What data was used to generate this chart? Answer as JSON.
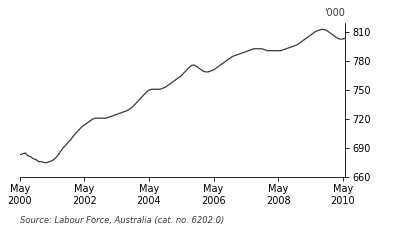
{
  "source_text": "Source: Labour Force, Australia (cat. no. 6202.0)",
  "ylim": [
    660,
    820
  ],
  "yticks": [
    660,
    690,
    720,
    750,
    780,
    810
  ],
  "x_tick_labels": [
    "May\n2000",
    "May\n2002",
    "May\n2004",
    "May\n2006",
    "May\n2008",
    "May\n2010"
  ],
  "x_tick_positions": [
    0,
    24,
    48,
    72,
    96,
    120
  ],
  "line_color": "#3a3a3a",
  "line_width": 0.9,
  "background_color": "#ffffff",
  "data_y": [
    683,
    684,
    685,
    682,
    681,
    679,
    678,
    676,
    676,
    675,
    675,
    676,
    677,
    679,
    682,
    686,
    690,
    693,
    696,
    699,
    703,
    706,
    709,
    712,
    714,
    716,
    718,
    720,
    721,
    721,
    721,
    721,
    721,
    722,
    723,
    724,
    725,
    726,
    727,
    728,
    729,
    731,
    733,
    736,
    739,
    742,
    745,
    748,
    750,
    751,
    751,
    751,
    751,
    752,
    753,
    755,
    757,
    759,
    761,
    763,
    765,
    768,
    771,
    774,
    776,
    776,
    774,
    772,
    770,
    769,
    769,
    770,
    771,
    773,
    775,
    777,
    779,
    781,
    783,
    785,
    786,
    787,
    788,
    789,
    790,
    791,
    792,
    793,
    793,
    793,
    793,
    792,
    791,
    791,
    791,
    791,
    791,
    791,
    792,
    793,
    794,
    795,
    796,
    797,
    799,
    801,
    803,
    805,
    807,
    809,
    811,
    812,
    813,
    813,
    812,
    810,
    808,
    806,
    804,
    803,
    803,
    804
  ]
}
